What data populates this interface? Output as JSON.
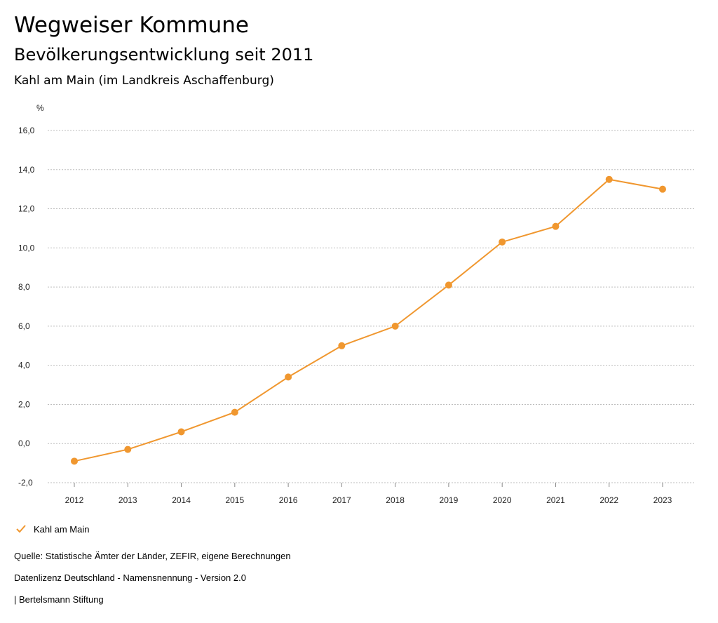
{
  "header": {
    "title": "Wegweiser Kommune",
    "subtitle": "Bevölkerungsentwicklung seit 2011",
    "region": "Kahl am Main (im Landkreis Aschaffenburg)"
  },
  "chart_data": {
    "type": "line",
    "ylabel": "%",
    "ylim": [
      -2.0,
      16.0
    ],
    "y_ticks": [
      "-2,0",
      "0,0",
      "2,0",
      "4,0",
      "6,0",
      "8,0",
      "10,0",
      "12,0",
      "14,0",
      "16,0"
    ],
    "x": [
      "2012",
      "2013",
      "2014",
      "2015",
      "2016",
      "2017",
      "2018",
      "2019",
      "2020",
      "2021",
      "2022",
      "2023"
    ],
    "series": [
      {
        "name": "Kahl am Main",
        "color": "#f0972f",
        "values": [
          -0.9,
          -0.3,
          0.6,
          1.6,
          3.4,
          5.0,
          6.0,
          8.1,
          10.3,
          11.1,
          13.5,
          13.0
        ]
      }
    ],
    "grid": true,
    "legend": "bottom-left"
  },
  "legend": {
    "label": "Kahl am Main",
    "icon": "check-icon",
    "color": "#f0972f"
  },
  "footer": {
    "source": "Quelle: Statistische Ämter der Länder, ZEFIR, eigene Berechnungen",
    "license": "Datenlizenz Deutschland - Namensnennung - Version 2.0",
    "brand": "| Bertelsmann Stiftung"
  }
}
